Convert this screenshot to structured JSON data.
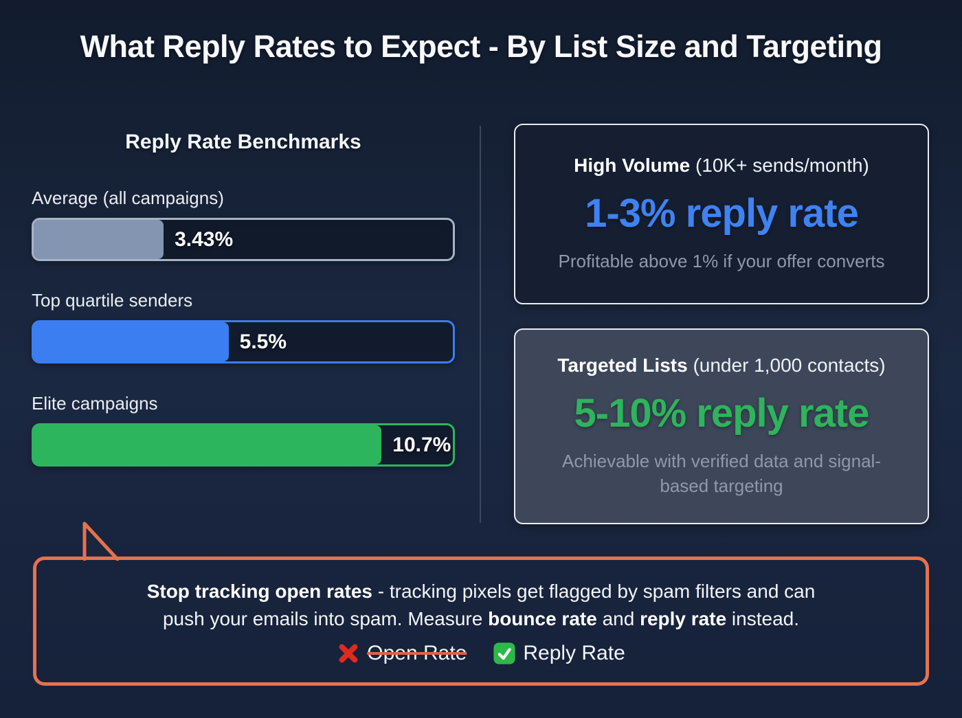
{
  "title": "What Reply Rates to Expect - By List Size and Targeting",
  "benchmarks": {
    "heading": "Reply Rate Benchmarks",
    "bars": [
      {
        "label": "Average (all campaigns)",
        "value": 3.43,
        "value_label": "3.43%",
        "fill_pct": 31,
        "fill_color": "#8495b2",
        "border_color": "#a7b3c6"
      },
      {
        "label": "Top quartile senders",
        "value": 5.5,
        "value_label": "5.5%",
        "fill_pct": 46.5,
        "fill_color": "#3b7ef2",
        "border_color": "#3b7ef2"
      },
      {
        "label": "Elite campaigns",
        "value": 10.7,
        "value_label": "10.7%",
        "fill_pct": 83,
        "fill_color": "#2db55e",
        "border_color": "#2db55e"
      }
    ]
  },
  "cards": [
    {
      "title_bold": "High Volume",
      "title_rest": " (10K+ sends/month)",
      "headline": "1-3% reply rate",
      "headline_color": "#3f82f2",
      "note": "Profitable above 1% if your offer converts"
    },
    {
      "title_bold": "Targeted Lists",
      "title_rest": " (under 1,000 contacts)",
      "headline": "5-10% reply rate",
      "headline_color": "#2db45c",
      "note": "Achievable with verified data and signal-based targeting"
    }
  ],
  "callout": {
    "border_color": "#e8714d",
    "line1_bold": "Stop tracking open rates",
    "line1_rest": " - tracking pixels get flagged by spam filters and can",
    "line2_start": "push your emails into spam. Measure ",
    "line2_bold1": "bounce rate",
    "line2_mid": " and ",
    "line2_bold2": "reply rate",
    "line2_end": " instead.",
    "rejected": {
      "icon": "cross-mark-icon",
      "label": "Open Rate",
      "icon_color": "#dd2b20"
    },
    "accepted": {
      "icon": "check-mark-icon",
      "label": "Reply Rate",
      "icon_color": "#2fb84a"
    }
  },
  "chart_data": {
    "type": "bar",
    "orientation": "horizontal",
    "title": "Reply Rate Benchmarks",
    "categories": [
      "Average (all campaigns)",
      "Top quartile senders",
      "Elite campaigns"
    ],
    "values": [
      3.43,
      5.5,
      10.7
    ],
    "value_labels": [
      "3.43%",
      "5.5%",
      "10.7%"
    ],
    "bar_colors": [
      "#8495b2",
      "#3b7ef2",
      "#2db55e"
    ],
    "xlim": [
      0,
      12
    ],
    "grid": false,
    "legend": false,
    "annotations": [
      "High Volume (10K+ sends/month): 1-3% reply rate — Profitable above 1% if your offer converts",
      "Targeted Lists (under 1,000 contacts): 5-10% reply rate — Achievable with verified data and signal-based targeting",
      "Stop tracking open rates - tracking pixels get flagged by spam filters and can push your emails into spam. Measure bounce rate and reply rate instead. ✗ Open Rate ✓ Reply Rate"
    ]
  }
}
